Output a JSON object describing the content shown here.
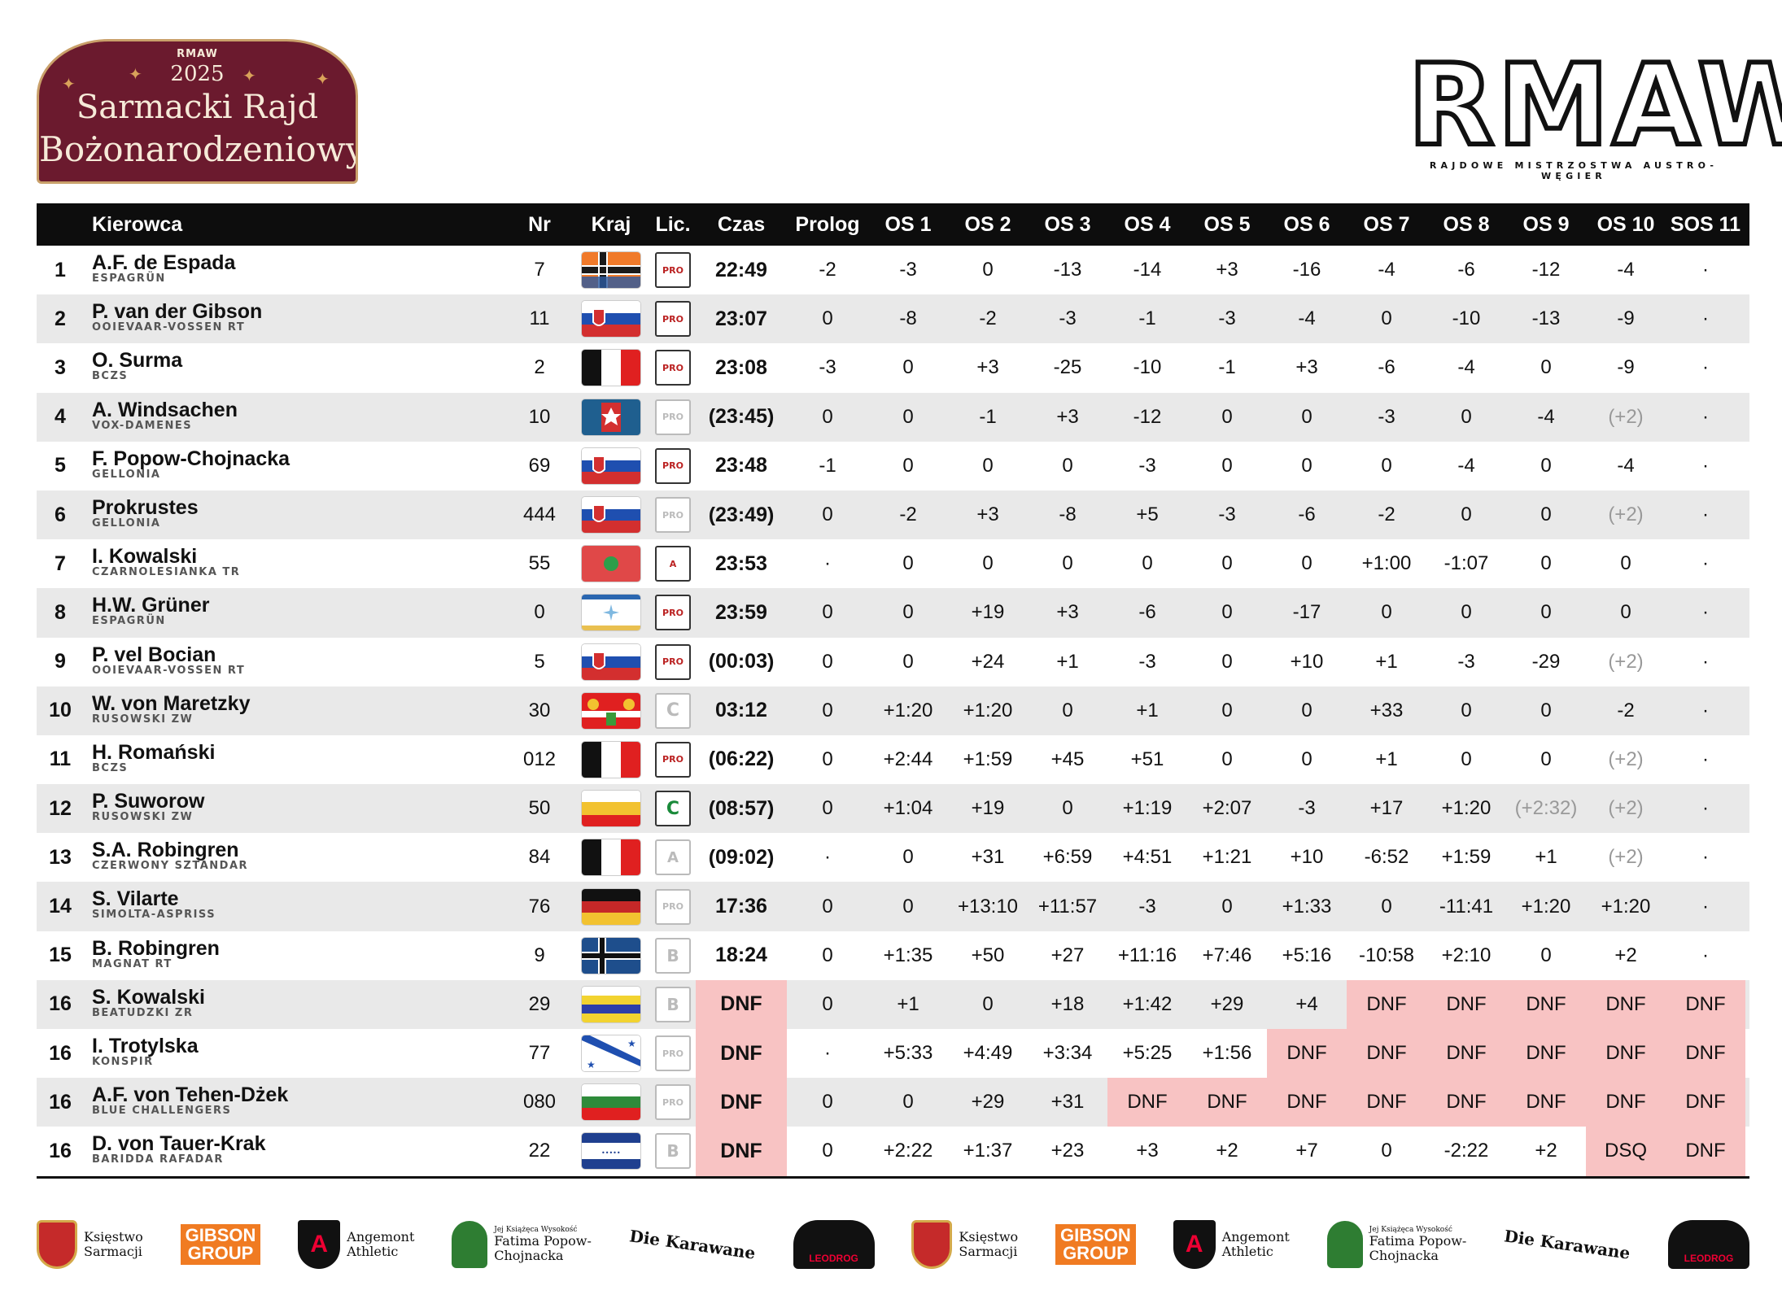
{
  "event_logo": {
    "brand": "RMAW",
    "year": "2025",
    "line1": "Sarmacki Rajd",
    "line2": "Bożonarodzeniowy"
  },
  "series_logo": {
    "text": "RMAW",
    "subtitle": "RAJDOWE MISTRZOSTWA AUSTRO-WĘGIER"
  },
  "table": {
    "headers": {
      "driver": "Kierowca",
      "nr": "Nr",
      "country": "Kraj",
      "lic": "Lic.",
      "time": "Czas",
      "stages": [
        "Prolog",
        "OS 1",
        "OS 2",
        "OS 3",
        "OS 4",
        "OS 5",
        "OS 6",
        "OS 7",
        "OS 8",
        "OS 9",
        "OS 10",
        "SOS 11"
      ]
    },
    "rows": [
      {
        "pos": "1",
        "name": "A.F. de Espada",
        "team": "ESPAGRÜN",
        "nr": "7",
        "flag": "espagrun",
        "lic": "pro",
        "time": "22:49",
        "stages": [
          "-2",
          "-3",
          "0",
          "-13",
          "-14",
          "+3",
          "-16",
          "-4",
          "-6",
          "-12",
          "-4",
          "·"
        ]
      },
      {
        "pos": "2",
        "name": "P. van der Gibson",
        "team": "OOIEVAAR-VOSSEN RT",
        "nr": "11",
        "flag": "sarmacja",
        "lic": "pro",
        "time": "23:07",
        "stages": [
          "0",
          "-8",
          "-2",
          "-3",
          "-1",
          "-3",
          "-4",
          "0",
          "-10",
          "-13",
          "-9",
          "·"
        ]
      },
      {
        "pos": "3",
        "name": "O. Surma",
        "team": "BCZS",
        "nr": "2",
        "flag": "bczs",
        "lic": "pro",
        "time": "23:08",
        "stages": [
          "-3",
          "0",
          "+3",
          "-25",
          "-10",
          "-1",
          "+3",
          "-6",
          "-4",
          "0",
          "-9",
          "·"
        ]
      },
      {
        "pos": "4",
        "name": "A. Windsachen",
        "team": "VOX-DAMENES",
        "nr": "10",
        "flag": "vox",
        "lic": "pro-dim",
        "time": "(23:45)",
        "stages": [
          "0",
          "0",
          "-1",
          "+3",
          "-12",
          "0",
          "0",
          "-3",
          "0",
          "-4",
          "(+2)",
          "·"
        ]
      },
      {
        "pos": "5",
        "name": "F. Popow-Chojnacka",
        "team": "GELLONIA",
        "nr": "69",
        "flag": "sarmacja",
        "lic": "pro",
        "time": "23:48",
        "stages": [
          "-1",
          "0",
          "0",
          "0",
          "-3",
          "0",
          "0",
          "0",
          "-4",
          "0",
          "-4",
          "·"
        ]
      },
      {
        "pos": "6",
        "name": "Prokrustes",
        "team": "GELLONIA",
        "nr": "444",
        "flag": "sarmacja",
        "lic": "pro-dim",
        "time": "(23:49)",
        "stages": [
          "0",
          "-2",
          "+3",
          "-8",
          "+5",
          "-3",
          "-6",
          "-2",
          "0",
          "0",
          "(+2)",
          "·"
        ]
      },
      {
        "pos": "7",
        "name": "I. Kowalski",
        "team": "CZARNOLESIANKA TR",
        "nr": "55",
        "flag": "czarno",
        "lic": "pro-a",
        "time": "23:53",
        "stages": [
          "·",
          "0",
          "0",
          "0",
          "0",
          "0",
          "0",
          "+1:00",
          "-1:07",
          "0",
          "0",
          "·"
        ]
      },
      {
        "pos": "8",
        "name": "H.W. Grüner",
        "team": "ESPAGRÜN",
        "nr": "0",
        "flag": "gruner",
        "lic": "pro",
        "time": "23:59",
        "stages": [
          "0",
          "0",
          "+19",
          "+3",
          "-6",
          "0",
          "-17",
          "0",
          "0",
          "0",
          "0",
          "·"
        ]
      },
      {
        "pos": "9",
        "name": "P. vel Bocian",
        "team": "OOIEVAAR-VOSSEN RT",
        "nr": "5",
        "flag": "sarmacja",
        "lic": "pro",
        "time": "(00:03)",
        "stages": [
          "0",
          "0",
          "+24",
          "+1",
          "-3",
          "0",
          "+10",
          "+1",
          "-3",
          "-29",
          "(+2)",
          "·"
        ]
      },
      {
        "pos": "10",
        "name": "W. von Maretzky",
        "team": "RUSOWSKI ZW",
        "nr": "30",
        "flag": "maretzky",
        "lic": "c-dim",
        "time": "03:12",
        "stages": [
          "0",
          "+1:20",
          "+1:20",
          "0",
          "+1",
          "0",
          "0",
          "+33",
          "0",
          "0",
          "-2",
          "·"
        ]
      },
      {
        "pos": "11",
        "name": "H. Romański",
        "team": "BCZS",
        "nr": "012",
        "flag": "bczs",
        "lic": "pro",
        "time": "(06:22)",
        "stages": [
          "0",
          "+2:44",
          "+1:59",
          "+45",
          "+51",
          "0",
          "0",
          "+1",
          "0",
          "0",
          "(+2)",
          "·"
        ]
      },
      {
        "pos": "12",
        "name": "P. Suworow",
        "team": "RUSOWSKI ZW",
        "nr": "50",
        "flag": "suworow",
        "lic": "c",
        "time": "(08:57)",
        "stages": [
          "0",
          "+1:04",
          "+19",
          "0",
          "+1:19",
          "+2:07",
          "-3",
          "+17",
          "+1:20",
          "(+2:32)",
          "(+2)",
          "·"
        ]
      },
      {
        "pos": "13",
        "name": "S.A. Robingren",
        "team": "CZERWONY SZTANDAR",
        "nr": "84",
        "flag": "bczs",
        "lic": "a-dim",
        "time": "(09:02)",
        "stages": [
          "·",
          "0",
          "+31",
          "+6:59",
          "+4:51",
          "+1:21",
          "+10",
          "-6:52",
          "+1:59",
          "+1",
          "(+2)",
          "·"
        ]
      },
      {
        "pos": "14",
        "name": "S. Vilarte",
        "team": "SIMOLTA-ASPRISS",
        "nr": "76",
        "flag": "simolta",
        "lic": "pro-dim",
        "time": "17:36",
        "stages": [
          "0",
          "0",
          "+13:10",
          "+11:57",
          "-3",
          "0",
          "+1:33",
          "0",
          "-11:41",
          "+1:20",
          "+1:20",
          "·"
        ]
      },
      {
        "pos": "15",
        "name": "B. Robingren",
        "team": "MAGNAT RT",
        "nr": "9",
        "flag": "magnat",
        "lic": "b-dim",
        "time": "18:24",
        "stages": [
          "0",
          "+1:35",
          "+50",
          "+27",
          "+11:16",
          "+7:46",
          "+5:16",
          "-10:58",
          "+2:10",
          "0",
          "+2",
          "·"
        ]
      },
      {
        "pos": "16",
        "name": "S. Kowalski",
        "team": "BEATUDZKI ZR",
        "nr": "29",
        "flag": "beatudzki",
        "lic": "b-dim",
        "time": "DNF",
        "stages": [
          "0",
          "+1",
          "0",
          "+18",
          "+1:42",
          "+29",
          "+4",
          "DNF",
          "DNF",
          "DNF",
          "DNF",
          "DNF"
        ]
      },
      {
        "pos": "16",
        "name": "I. Trotylska",
        "team": "KONSPIR",
        "nr": "77",
        "flag": "konspir",
        "lic": "pro-dim",
        "time": "DNF",
        "stages": [
          "·",
          "+5:33",
          "+4:49",
          "+3:34",
          "+5:25",
          "+1:56",
          "DNF",
          "DNF",
          "DNF",
          "DNF",
          "DNF",
          "DNF"
        ]
      },
      {
        "pos": "16",
        "name": "A.F. von Tehen-Dżek",
        "team": "BLUE CHALLENGERS",
        "nr": "080",
        "flag": "blue",
        "lic": "pro-dim",
        "time": "DNF",
        "stages": [
          "0",
          "0",
          "+29",
          "+31",
          "DNF",
          "DNF",
          "DNF",
          "DNF",
          "DNF",
          "DNF",
          "DNF",
          "DNF"
        ]
      },
      {
        "pos": "16",
        "name": "D. von Tauer-Krak",
        "team": "BARIDDA RAFADAR",
        "nr": "22",
        "flag": "baridda",
        "lic": "b-dim",
        "time": "DNF",
        "stages": [
          "0",
          "+2:22",
          "+1:37",
          "+23",
          "+3",
          "+2",
          "+7",
          "0",
          "-2:22",
          "+2",
          "DSQ",
          "DNF"
        ]
      }
    ]
  },
  "sponsors": [
    {
      "type": "crest",
      "name": "Księstwo\nSarmacji"
    },
    {
      "type": "gibson",
      "name": "GIBSON\nGROUP"
    },
    {
      "type": "shield",
      "name": "Angemont\nAthletic"
    },
    {
      "type": "vine",
      "small": "Jej Książęca Wysokość",
      "name": "Fatima Popow-\nChojnacka"
    },
    {
      "type": "karawane",
      "name": "Die Karawane"
    },
    {
      "type": "road",
      "name": "LEODROG"
    },
    {
      "type": "crest",
      "name": "Księstwo\nSarmacji"
    },
    {
      "type": "gibson",
      "name": "GIBSON\nGROUP"
    },
    {
      "type": "shield",
      "name": "Angemont\nAthletic"
    },
    {
      "type": "vine",
      "small": "Jej Książęca Wysokość",
      "name": "Fatima Popow-\nChojnacka"
    },
    {
      "type": "karawane",
      "name": "Die Karawane"
    },
    {
      "type": "road",
      "name": "LEODROG"
    }
  ],
  "colors": {
    "header_bg": "#0d0d0d",
    "row_alt": "#e9e9e9",
    "dnf_bg": "#f8c3c3",
    "plate_bg": "#6b1a2e"
  }
}
